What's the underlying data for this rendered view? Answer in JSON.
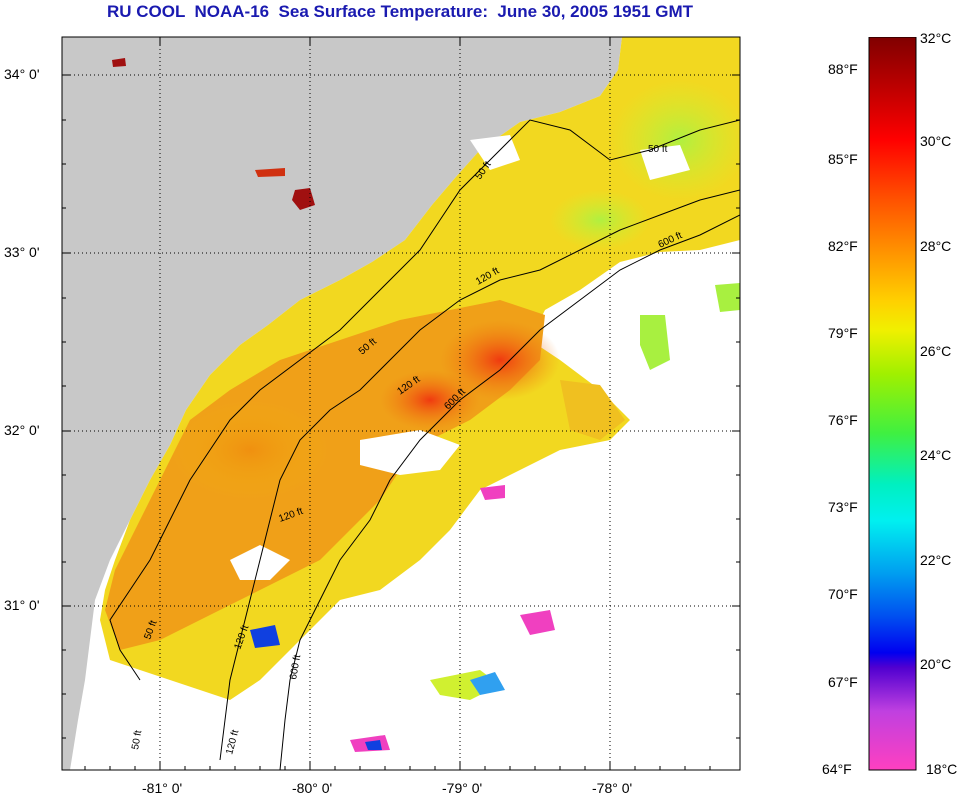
{
  "title": "RU COOL  NOAA-16  Sea Surface Temperature:  June 30, 2005 1951 GMT",
  "map": {
    "lat_labels": [
      "34° 0'",
      "33° 0'",
      "32° 0'",
      "31° 0'"
    ],
    "lon_labels": [
      "-81° 0'",
      "-80° 0'",
      "-79° 0'",
      "-78° 0'"
    ],
    "isobaths": [
      "50 ft",
      "120 ft",
      "600 ft"
    ],
    "isobath_labels": [
      "50 ft",
      "50 ft",
      "50 ft",
      "120 ft",
      "600 ft",
      "120 ft",
      "600 ft",
      "120 ft",
      "50 ft",
      "120 ft",
      "600 ft",
      "120 ft",
      "50 ft"
    ]
  },
  "colorbar": {
    "fahrenheit": [
      "88°F",
      "85°F",
      "82°F",
      "79°F",
      "76°F",
      "73°F",
      "70°F",
      "67°F",
      "64°F"
    ],
    "celsius": [
      "32°C",
      "30°C",
      "28°C",
      "26°C",
      "24°C",
      "22°C",
      "20°C",
      "18°C"
    ],
    "min_c": 18,
    "max_c": 32
  },
  "colors": {
    "title": "#1a1ab0",
    "land": "#c8c8c8",
    "no_data": "#ffffff",
    "sst_warm": "#f08a10",
    "sst_mid": "#f0e020",
    "sst_cool": "#a0f040"
  }
}
